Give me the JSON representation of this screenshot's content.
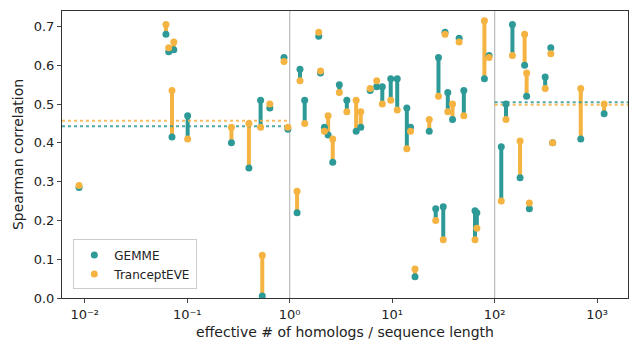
{
  "chart_data": {
    "type": "scatter",
    "x_label": "effective # of homologs / sequence length",
    "y_label": "Spearman correlation",
    "log": "x",
    "grid": false,
    "legend": "lower left",
    "marker": "circle",
    "x": [
      0.0088,
      0.062,
      0.066,
      0.071,
      0.074,
      0.101,
      0.27,
      0.4,
      0.52,
      0.54,
      0.64,
      0.88,
      0.96,
      1.18,
      1.26,
      1.4,
      1.92,
      2.0,
      2.18,
      2.37,
      2.63,
      3.05,
      3.61,
      4.45,
      4.94,
      6.1,
      7.06,
      8.01,
      9.68,
      11.2,
      13.9,
      15.1,
      16.7,
      23.0,
      26.6,
      28.3,
      31.5,
      32.8,
      34.9,
      38.8,
      45.0,
      50.0,
      64.3,
      67.0,
      79.4,
      88.2,
      116,
      129,
      149,
      177,
      196,
      205,
      218,
      311,
      353,
      368,
      692,
      1170
    ],
    "series": [
      {
        "name": "GEMME",
        "color": "#2e9a98",
        "values": [
          0.285,
          0.68,
          0.635,
          0.415,
          0.64,
          0.47,
          0.4,
          0.335,
          0.51,
          0.005,
          0.49,
          0.62,
          0.435,
          0.22,
          0.59,
          0.51,
          0.675,
          0.58,
          0.44,
          0.42,
          0.35,
          0.55,
          0.51,
          0.43,
          0.44,
          0.535,
          0.545,
          0.545,
          0.565,
          0.565,
          0.49,
          0.44,
          0.055,
          0.43,
          0.23,
          0.62,
          0.235,
          0.685,
          0.53,
          0.46,
          0.67,
          0.535,
          0.225,
          0.22,
          0.565,
          0.625,
          0.39,
          0.5,
          0.705,
          0.31,
          0.6,
          0.52,
          0.23,
          0.57,
          0.645,
          0.4,
          0.41,
          0.475
        ]
      },
      {
        "name": "TranceptEVE",
        "color": "#f5b342",
        "values": [
          0.29,
          0.705,
          0.645,
          0.535,
          0.66,
          0.41,
          0.44,
          0.45,
          0.44,
          0.11,
          0.5,
          0.61,
          0.44,
          0.275,
          0.56,
          0.45,
          0.685,
          0.585,
          0.43,
          0.47,
          0.41,
          0.53,
          0.48,
          0.51,
          0.48,
          0.54,
          0.56,
          0.5,
          0.51,
          0.485,
          0.385,
          0.43,
          0.075,
          0.46,
          0.2,
          0.52,
          0.15,
          0.68,
          0.48,
          0.5,
          0.66,
          0.47,
          0.15,
          0.18,
          0.715,
          0.62,
          0.25,
          0.46,
          0.625,
          0.405,
          0.68,
          0.58,
          0.245,
          0.54,
          0.63,
          0.4,
          0.54,
          0.5
        ]
      }
    ],
    "mean_lines": [
      {
        "series": "GEMME",
        "x": [
          0.006,
          1
        ],
        "value": 0.443
      },
      {
        "series": "TranceptEVE",
        "x": [
          0.006,
          1
        ],
        "value": 0.457
      },
      {
        "series": "GEMME",
        "x": [
          100,
          2000
        ],
        "value": 0.505
      },
      {
        "series": "TranceptEVE",
        "x": [
          100,
          2000
        ],
        "value": 0.498
      }
    ],
    "vlines": [
      1,
      100
    ],
    "xlim": [
      0.006,
      2000
    ],
    "xticks": [
      {
        "value": 0.01,
        "label": "10⁻²"
      },
      {
        "value": 0.1,
        "label": "10⁻¹"
      },
      {
        "value": 1,
        "label": "10⁰"
      },
      {
        "value": 10,
        "label": "10¹"
      },
      {
        "value": 100,
        "label": "10²"
      },
      {
        "value": 1000,
        "label": "10³"
      }
    ],
    "ylim": [
      0,
      0.74
    ],
    "yticks": [
      {
        "value": 0,
        "label": "0.0"
      },
      0.1,
      0.2,
      0.3,
      0.4,
      0.5,
      0.6,
      0.7
    ]
  }
}
